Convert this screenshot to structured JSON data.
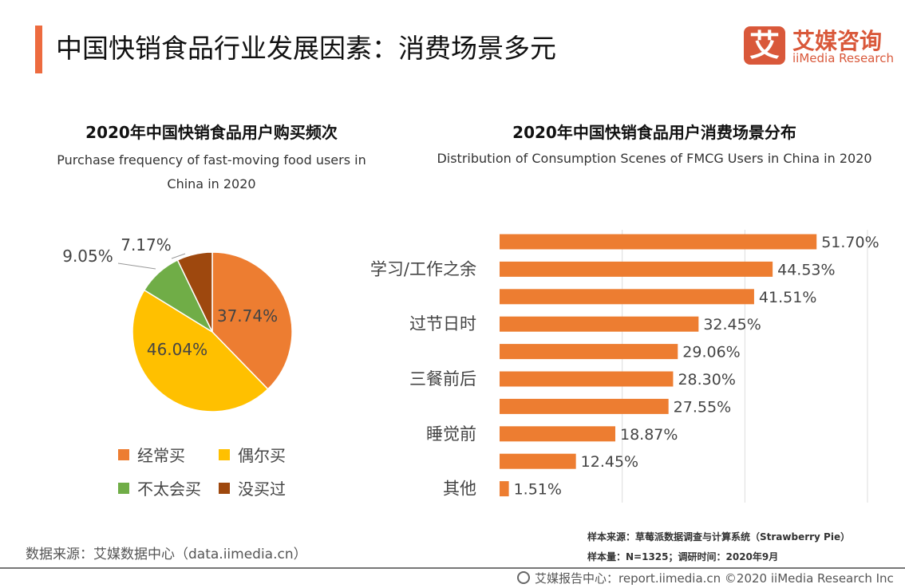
{
  "header": {
    "title": "中国快销食品行业发展因素：消费场景多元",
    "logo_mark": "艾",
    "logo_cn": "艾媒咨询",
    "logo_en": "iiMedia Research",
    "accent_color": "#ED6B3F"
  },
  "chart_data": [
    {
      "type": "pie",
      "title": "2020年中国快销食品用户购买频次",
      "subtitle": "Purchase frequency of fast-moving food users in China in 2020",
      "slices": [
        {
          "label": "经常买",
          "value": 37.74,
          "text": "37.74%",
          "color": "#ED7D31"
        },
        {
          "label": "偶尔买",
          "value": 46.04,
          "text": "46.04%",
          "color": "#FFC000"
        },
        {
          "label": "不太会买",
          "value": 9.05,
          "text": "9.05%",
          "color": "#70AD47"
        },
        {
          "label": "没买过",
          "value": 7.17,
          "text": "7.17%",
          "color": "#9E480E"
        }
      ],
      "legend": "bottom"
    },
    {
      "type": "bar",
      "orientation": "horizontal",
      "title": "2020年中国快销食品用户消费场景分布",
      "subtitle": "Distribution of Consumption Scenes of FMCG Users in China in 2020",
      "categories": [
        "",
        "学习/工作之余",
        "",
        "过节日时",
        "",
        "三餐前后",
        "",
        "睡觉前",
        "",
        "其他"
      ],
      "values": [
        51.7,
        44.53,
        41.51,
        32.45,
        29.06,
        28.3,
        27.55,
        18.87,
        12.45,
        1.51
      ],
      "labels": [
        "51.70%",
        "44.53%",
        "41.51%",
        "32.45%",
        "29.06%",
        "28.30%",
        "27.55%",
        "18.87%",
        "12.45%",
        "1.51%"
      ],
      "xlim": [
        0,
        60
      ],
      "grid": true,
      "color": "#ED7D31"
    }
  ],
  "footer": {
    "source": "数据来源：艾媒数据中心（data.iimedia.cn）",
    "sample_source": "样本来源：草莓派数据调查与计算系统（Strawberry Pie）",
    "sample_size": "样本量：N=1325；调研时间：2020年9月",
    "copyright": "艾媒报告中心：report.iimedia.cn  ©2020  iiMedia Research Inc"
  }
}
